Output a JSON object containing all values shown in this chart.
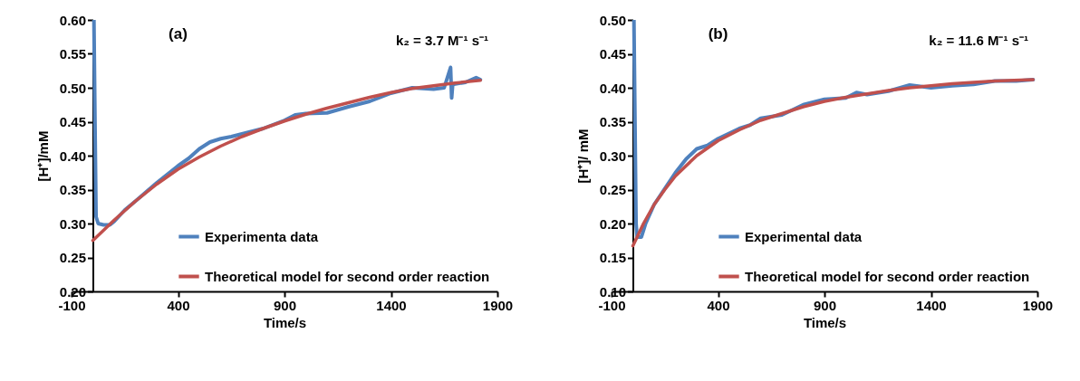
{
  "chart_data": [
    {
      "type": "line",
      "xlabel": "Time/s",
      "ylabel": "[H⁺]/mM",
      "annotations": [
        "(a)",
        "k₂ = 3.7 M⁻¹ s⁻¹"
      ],
      "xlim": [
        -100,
        1900
      ],
      "xticks": [
        -100,
        400,
        900,
        1400,
        1900
      ],
      "ylim": [
        0.2,
        0.6
      ],
      "yticks": [
        {
          "value": 0.2,
          "label": "0.20"
        },
        0.25,
        {
          "value": 0.3,
          "label": "0.30"
        },
        0.35,
        {
          "value": 0.4,
          "label": "0.40"
        },
        0.45,
        {
          "value": 0.5,
          "label": "0.50"
        },
        0.55,
        {
          "value": 0.6,
          "label": "0.60"
        }
      ],
      "legend": "bottom right",
      "grid": false,
      "series": [
        {
          "name": "Experimenta data",
          "color": "#4f81bd",
          "x": [
            5,
            10,
            15,
            25,
            50,
            80,
            100,
            150,
            200,
            300,
            400,
            450,
            500,
            550,
            600,
            650,
            700,
            800,
            900,
            950,
            1000,
            1100,
            1200,
            1300,
            1400,
            1500,
            1600,
            1650,
            1680,
            1685,
            1690,
            1750,
            1800,
            1820
          ],
          "values": [
            0.6,
            0.45,
            0.31,
            0.3,
            0.298,
            0.298,
            0.303,
            0.32,
            0.333,
            0.36,
            0.385,
            0.396,
            0.41,
            0.42,
            0.425,
            0.428,
            0.432,
            0.44,
            0.452,
            0.46,
            0.462,
            0.463,
            0.472,
            0.48,
            0.492,
            0.5,
            0.498,
            0.5,
            0.53,
            0.485,
            0.505,
            0.508,
            0.515,
            0.512
          ]
        },
        {
          "name": "Theoretical model for second order reaction",
          "color": "#c0504d",
          "x": [
            0,
            100,
            200,
            300,
            400,
            500,
            600,
            700,
            800,
            900,
            1000,
            1100,
            1200,
            1300,
            1400,
            1500,
            1600,
            1700,
            1820
          ],
          "values": [
            0.275,
            0.305,
            0.333,
            0.358,
            0.38,
            0.398,
            0.414,
            0.428,
            0.44,
            0.451,
            0.461,
            0.47,
            0.478,
            0.486,
            0.493,
            0.499,
            0.503,
            0.507,
            0.511
          ]
        }
      ]
    },
    {
      "type": "line",
      "xlabel": "Time/s",
      "ylabel": "[H⁺]/ mM",
      "annotations": [
        "(b)",
        "k₂ = 11.6 M⁻¹ s⁻¹"
      ],
      "xlim": [
        -100,
        1900
      ],
      "xticks": [
        -100,
        400,
        900,
        1400,
        1900
      ],
      "ylim": [
        0.1,
        0.5
      ],
      "yticks": [
        {
          "value": 0.1,
          "label": "0.10"
        },
        0.15,
        {
          "value": 0.2,
          "label": "0.20"
        },
        0.25,
        {
          "value": 0.3,
          "label": "0.30"
        },
        0.35,
        {
          "value": 0.4,
          "label": "0.40"
        },
        0.45,
        {
          "value": 0.5,
          "label": "0.50"
        }
      ],
      "legend": "bottom right",
      "grid": false,
      "series": [
        {
          "name": "Experimental data",
          "color": "#4f81bd",
          "x": [
            5,
            10,
            15,
            20,
            40,
            60,
            100,
            200,
            250,
            300,
            350,
            400,
            500,
            550,
            600,
            700,
            800,
            900,
            1000,
            1050,
            1100,
            1200,
            1300,
            1400,
            1500,
            1600,
            1700,
            1800,
            1880
          ],
          "values": [
            0.5,
            0.35,
            0.2,
            0.18,
            0.18,
            0.2,
            0.228,
            0.275,
            0.295,
            0.31,
            0.315,
            0.325,
            0.34,
            0.345,
            0.355,
            0.36,
            0.375,
            0.383,
            0.385,
            0.393,
            0.39,
            0.395,
            0.404,
            0.4,
            0.403,
            0.405,
            0.41,
            0.41,
            0.412
          ]
        },
        {
          "name": "Theoretical model for second order reaction",
          "color": "#c0504d",
          "x": [
            0,
            50,
            100,
            150,
            200,
            300,
            400,
            500,
            600,
            700,
            800,
            900,
            1000,
            1100,
            1200,
            1300,
            1400,
            1500,
            1600,
            1700,
            1880
          ],
          "values": [
            0.167,
            0.2,
            0.228,
            0.25,
            0.27,
            0.3,
            0.322,
            0.338,
            0.352,
            0.362,
            0.372,
            0.38,
            0.386,
            0.391,
            0.396,
            0.4,
            0.403,
            0.406,
            0.408,
            0.41,
            0.412
          ]
        }
      ]
    }
  ]
}
